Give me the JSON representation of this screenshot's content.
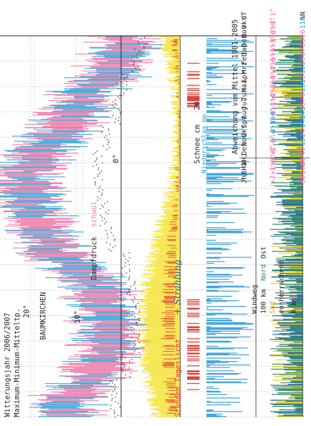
{
  "header": {
    "title_line1": "Witterungsjahr 2006/2007",
    "title_line2": "Maximum-Minimum-Mitteltp.",
    "temp_label_20": "20°",
    "temp_label_10": "10°",
    "temp_label_0": "0°",
    "station": "BAUMKIRCHEN",
    "dampfdruck_label": "Dampfdruck",
    "dampfdruck_note": "schwül",
    "sun_label": "Stunden Tageslicht",
    "sun_handwritten": "+ Strahlung",
    "precip_label": "Niederschlag mm",
    "snow_label": "Schnee cm",
    "snow_tick_20": "20",
    "wind_title": "Windweg",
    "wind_scale_100": "100 km",
    "wind_nord": "Nord",
    "wind_ost": "Ost",
    "wind_sued": "Süd",
    "wind_note": "vorherrschend",
    "wind_scale_0": "0 km"
  },
  "table": {
    "title": "Abweichung vom Mittel 1901-2005",
    "col_dt": "dT",
    "col_pct": "%N",
    "rows": [
      {
        "month": "Okt",
        "dt": "+3.1°",
        "pct": "118"
      },
      {
        "month": "Nov",
        "dt": "+2.9°",
        "pct": "66"
      },
      {
        "month": "Dez",
        "dt": "+3.6°",
        "pct": "53"
      },
      {
        "month": "Jan",
        "dt": "+5.3°",
        "pct": "67"
      },
      {
        "month": "Feb",
        "dt": "+5.3°",
        "pct": "69"
      },
      {
        "month": "Mrz",
        "dt": "+2.6°",
        "pct": "107"
      },
      {
        "month": "Apr",
        "dt": "+5.4°",
        "pct": "13"
      },
      {
        "month": "Mai",
        "dt": "+2.4°",
        "pct": "159"
      },
      {
        "month": "Jun",
        "dt": "+2.6°",
        "pct": "70"
      },
      {
        "month": "Jul",
        "dt": "+1.4°",
        "pct": "99"
      },
      {
        "month": "Aug",
        "dt": "+0.1°",
        "pct": "143"
      },
      {
        "month": "Spt",
        "dt": "-2.0°",
        "pct": "140"
      },
      {
        "month": "Okt",
        "dt": "-0.5°",
        "pct": "24"
      },
      {
        "month": "Nov",
        "dt": "-0.4°",
        "pct": "137"
      },
      {
        "month": "Dez",
        "dt": "+1.6°",
        "pct": "40"
      }
    ],
    "summary": [
      {
        "period": "WHJ",
        "dt": "+3.8°",
        "pct": "80"
      },
      {
        "period": "SHJ",
        "dt": "+1.6°",
        "pct": "108"
      },
      {
        "period": "Jhr",
        "dt": "+2.7°",
        "pct": "98"
      }
    ]
  },
  "colors": {
    "warm": "#f07aa8",
    "cold": "#2aa6d8",
    "sun": "#f6e64c",
    "sun_red": "#e0332a",
    "precip": "#3aa0d8",
    "ink": "#2a2a2a",
    "table_red": "#f06aa0",
    "table_blue": "#2aa6d8",
    "wind_green": "#2a8a6a",
    "wind_yellow": "#e8d020",
    "handwriting": "#2a5aa8"
  },
  "chart_data": {
    "type": "area",
    "x_unit": "month",
    "categories": [
      "Okt",
      "Nov",
      "Dez",
      "Jan",
      "Feb",
      "Mrz",
      "Apr",
      "Mai",
      "Jun",
      "Jul",
      "Aug",
      "Spt",
      "Okt",
      "Nov",
      "Dez"
    ],
    "ylim": [
      -10,
      25
    ],
    "series": [
      {
        "name": "Maximum-Minimum-Mitteltp.",
        "values": [
          12.5,
          6.8,
          3.0,
          2.6,
          4.3,
          6.9,
          14.8,
          17.6,
          20.3,
          21.0,
          17.4,
          12.0,
          9.0,
          2.6,
          -0.8
        ]
      }
    ]
  }
}
